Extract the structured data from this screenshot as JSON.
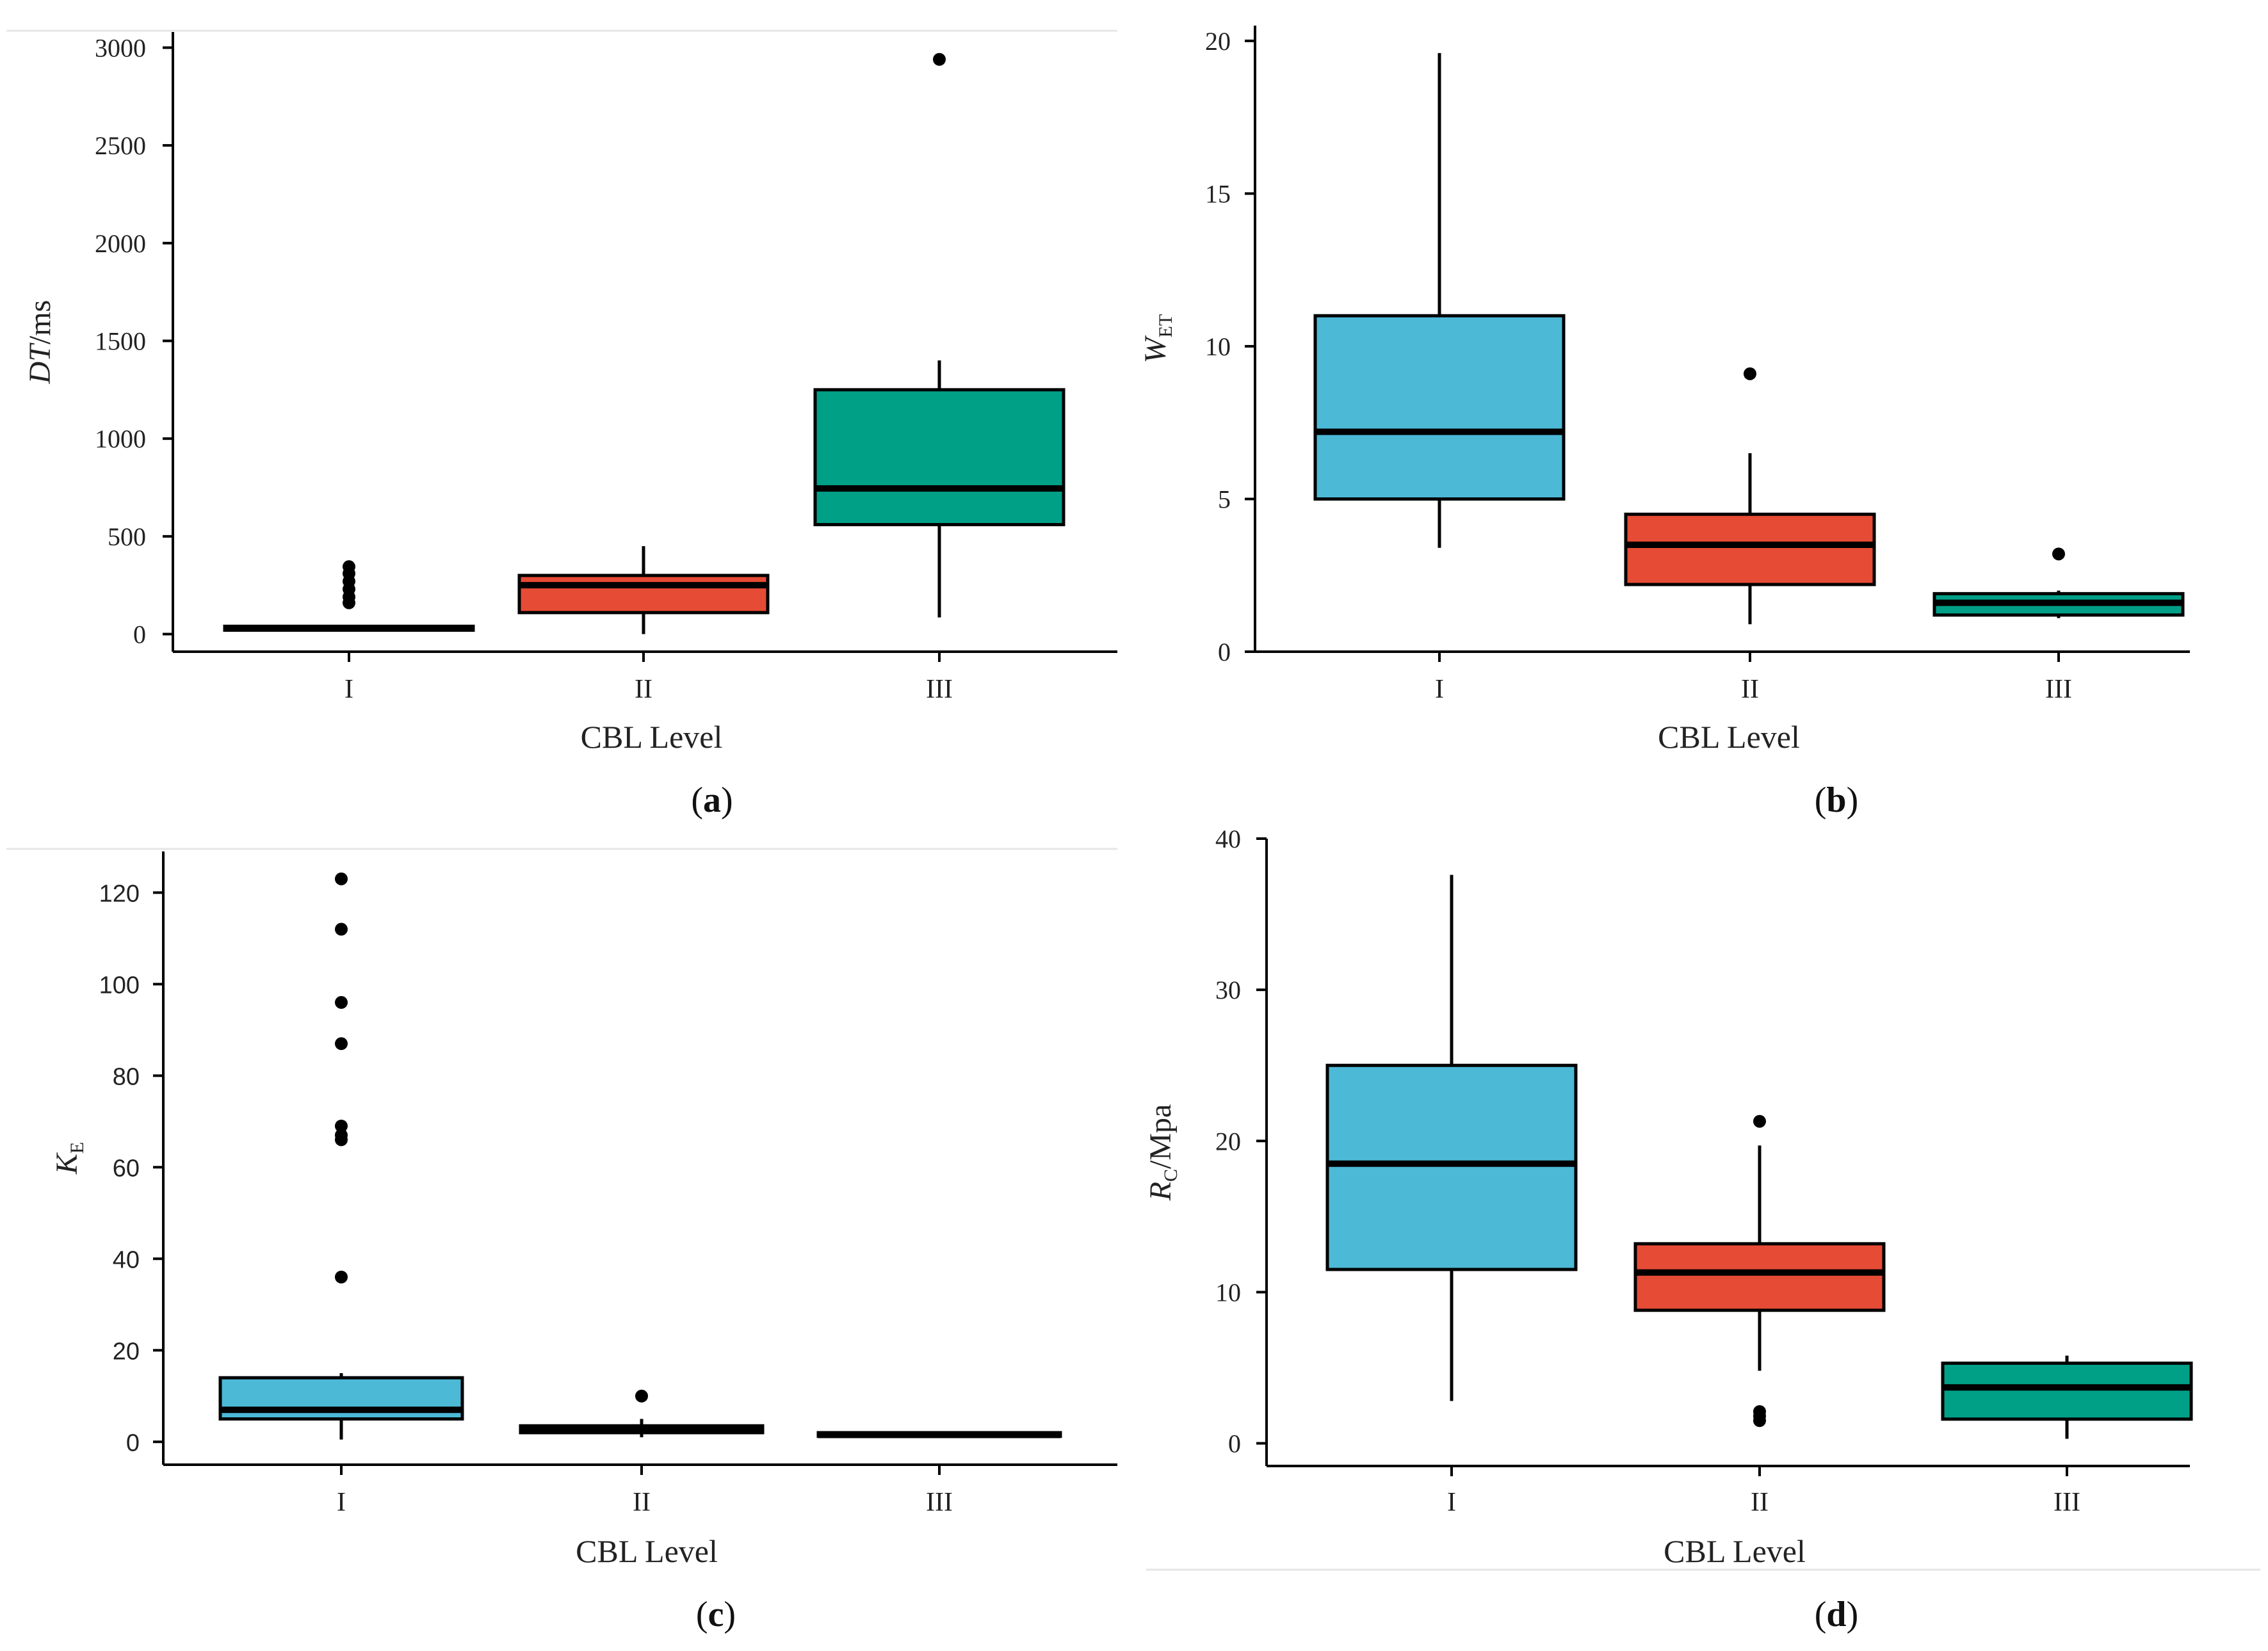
{
  "colors": {
    "box1": "#4cb9d6",
    "box2": "#e64b35",
    "box3": "#00a087",
    "line": "#000000"
  },
  "chart_data": [
    {
      "type": "box",
      "panel_label": "(a)",
      "title": "",
      "xlabel": "CBL Level",
      "ylabel_main": "DT",
      "ylabel_rest": "/ms",
      "ylabel_sub": "",
      "ylim": [
        -90,
        3080
      ],
      "yticks": [
        0,
        500,
        1000,
        1500,
        2000,
        2500,
        3000
      ],
      "categories": [
        "I",
        "II",
        "III"
      ],
      "boxes": [
        {
          "q1": 20,
          "median": 30,
          "q3": 40,
          "whisker_low": 15,
          "whisker_high": 45,
          "outliers": [
            160,
            190,
            230,
            270,
            310,
            345
          ]
        },
        {
          "q1": 110,
          "median": 250,
          "q3": 300,
          "whisker_low": 0,
          "whisker_high": 450,
          "outliers": []
        },
        {
          "q1": 560,
          "median": 745,
          "q3": 1250,
          "whisker_low": 85,
          "whisker_high": 1400,
          "outliers": [
            2940
          ]
        }
      ]
    },
    {
      "type": "box",
      "panel_label": "(b)",
      "title": "",
      "xlabel": "CBL Level",
      "ylabel_main": "W",
      "ylabel_rest": "",
      "ylabel_sub": "ET",
      "ylim": [
        0,
        20.5
      ],
      "yticks": [
        0,
        5,
        10,
        15,
        20
      ],
      "categories": [
        "I",
        "II",
        "III"
      ],
      "boxes": [
        {
          "q1": 5.0,
          "median": 7.2,
          "q3": 11.0,
          "whisker_low": 3.4,
          "whisker_high": 19.6,
          "outliers": []
        },
        {
          "q1": 2.2,
          "median": 3.5,
          "q3": 4.5,
          "whisker_low": 0.9,
          "whisker_high": 6.5,
          "outliers": [
            9.1
          ]
        },
        {
          "q1": 1.2,
          "median": 1.6,
          "q3": 1.9,
          "whisker_low": 1.1,
          "whisker_high": 2.0,
          "outliers": [
            3.2
          ]
        }
      ]
    },
    {
      "type": "box",
      "panel_label": "(c)",
      "title": "",
      "xlabel": "CBL Level",
      "ylabel_main": "K",
      "ylabel_rest": "",
      "ylabel_sub": "E",
      "ylim": [
        -5,
        129
      ],
      "yticks": [
        0,
        20,
        40,
        60,
        80,
        100,
        120
      ],
      "categories": [
        "I",
        "II",
        "III"
      ],
      "boxes": [
        {
          "q1": 5,
          "median": 7,
          "q3": 14,
          "whisker_low": 0.5,
          "whisker_high": 15,
          "outliers": [
            36,
            66,
            67,
            69,
            87,
            96,
            112,
            123
          ]
        },
        {
          "q1": 2,
          "median": 2.5,
          "q3": 3.5,
          "whisker_low": 1,
          "whisker_high": 5,
          "outliers": [
            10
          ]
        },
        {
          "q1": 1.2,
          "median": 1.5,
          "q3": 2.0,
          "whisker_low": 1.2,
          "whisker_high": 2.0,
          "outliers": []
        }
      ]
    },
    {
      "type": "box",
      "panel_label": "(d)",
      "title": "",
      "xlabel": "CBL Level",
      "ylabel_main": "R",
      "ylabel_rest": "/Mpa",
      "ylabel_sub": "C",
      "ylim": [
        -1.5,
        40
      ],
      "yticks": [
        0,
        10,
        20,
        30,
        40
      ],
      "categories": [
        "I",
        "II",
        "III"
      ],
      "boxes": [
        {
          "q1": 11.5,
          "median": 18.5,
          "q3": 25.0,
          "whisker_low": 2.8,
          "whisker_high": 37.6,
          "outliers": []
        },
        {
          "q1": 8.8,
          "median": 11.3,
          "q3": 13.2,
          "whisker_low": 4.8,
          "whisker_high": 19.7,
          "outliers": [
            1.5,
            1.8,
            2.1,
            21.3
          ]
        },
        {
          "q1": 1.6,
          "median": 3.7,
          "q3": 5.3,
          "whisker_low": 0.3,
          "whisker_high": 5.8,
          "outliers": []
        }
      ]
    }
  ]
}
